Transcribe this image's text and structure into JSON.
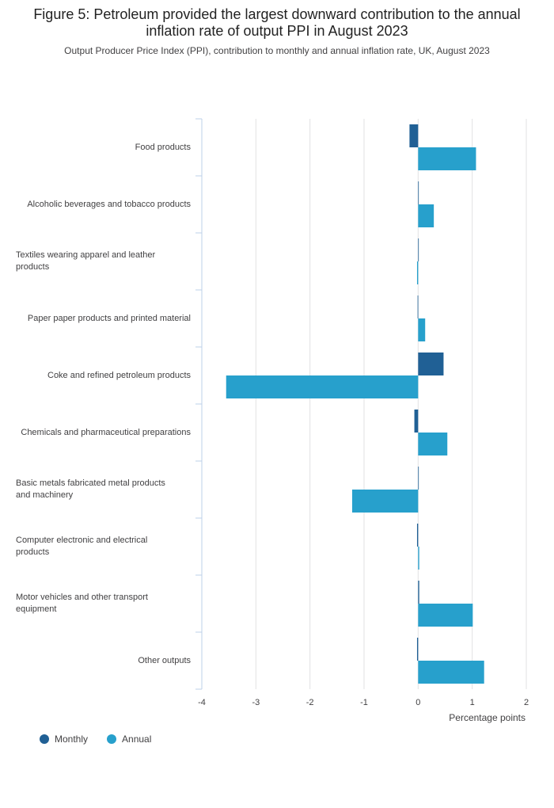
{
  "chart_data": {
    "type": "bar",
    "orientation": "horizontal",
    "title": "Figure 5: Petroleum provided the largest downward contribution to the annual inflation rate of output PPI in August 2023",
    "subtitle": "Output Producer Price Index (PPI), contribution to monthly and annual inflation rate, UK, August 2023",
    "xlabel": "Percentage points",
    "ylabel": "",
    "xlim": [
      -4,
      2
    ],
    "xticks": [
      "-4",
      "-3",
      "-2",
      "-1",
      "0",
      "1",
      "2"
    ],
    "grid": true,
    "legend_position": "bottom-left",
    "categories": [
      "Food products",
      "Alcoholic beverages and tobacco products",
      "Textiles wearing apparel and leather products",
      "Paper paper products and printed material",
      "Coke and refined petroleum products",
      "Chemicals and pharmaceutical preparations",
      "Basic metals fabricated metal products and machinery",
      "Computer electronic and electrical products",
      "Motor vehicles and other transport equipment",
      "Other outputs"
    ],
    "series": [
      {
        "name": "Monthly",
        "color": "#206095",
        "values": [
          -0.16,
          0.01,
          0.0,
          -0.01,
          0.47,
          -0.07,
          0.0,
          -0.02,
          0.02,
          -0.02
        ]
      },
      {
        "name": "Annual",
        "color": "#27a0cc",
        "values": [
          1.07,
          0.29,
          -0.02,
          0.13,
          -3.55,
          0.54,
          -1.22,
          0.02,
          1.01,
          1.22
        ]
      }
    ]
  }
}
